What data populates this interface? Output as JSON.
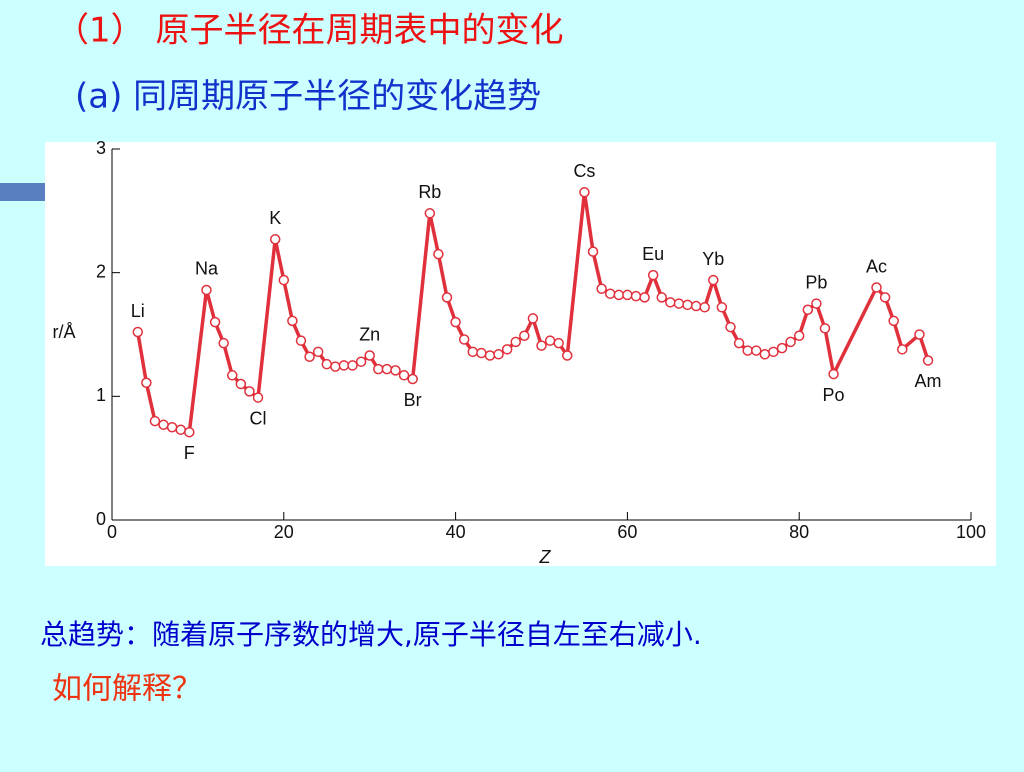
{
  "slide": {
    "title": "（1） 原子半径在周期表中的变化",
    "subtitle": "(a) 同周期原子半径的变化趋势",
    "summary": "总趋势：随着原子序数的增大,原子半径自左至右减小.",
    "question": "如何解释？"
  },
  "chart_data": {
    "type": "line",
    "xlabel": "Z",
    "ylabel": "r/Å",
    "xlim": [
      0,
      100
    ],
    "xticks": [
      0,
      20,
      40,
      60,
      80,
      100
    ],
    "ylim": [
      0,
      3
    ],
    "yticks": [
      0,
      1,
      2,
      3
    ],
    "series": [
      {
        "color": "#e0303c",
        "x": [
          3,
          4,
          5,
          6,
          7,
          8,
          9,
          11,
          12,
          13,
          14,
          15,
          16,
          17,
          19,
          20,
          21,
          22,
          23,
          24,
          25,
          26,
          27,
          28,
          29,
          30,
          31,
          32,
          33,
          34,
          35,
          37,
          38,
          39,
          40,
          41,
          42,
          43,
          44,
          45,
          46,
          47,
          48,
          49,
          50,
          51,
          52,
          53,
          55,
          56,
          57,
          58,
          59,
          60,
          61,
          62,
          63,
          64,
          65,
          66,
          67,
          68,
          69,
          70,
          71,
          72,
          73,
          74,
          75,
          76,
          77,
          78,
          79,
          80,
          81,
          82,
          83,
          84,
          89,
          90,
          91,
          92,
          94,
          95
        ],
        "values": [
          1.52,
          1.11,
          0.8,
          0.77,
          0.75,
          0.73,
          0.71,
          1.86,
          1.6,
          1.43,
          1.17,
          1.1,
          1.04,
          0.99,
          2.27,
          1.94,
          1.61,
          1.45,
          1.32,
          1.36,
          1.26,
          1.24,
          1.25,
          1.25,
          1.28,
          1.33,
          1.22,
          1.22,
          1.21,
          1.17,
          1.14,
          2.48,
          2.15,
          1.8,
          1.6,
          1.46,
          1.36,
          1.35,
          1.33,
          1.34,
          1.38,
          1.44,
          1.49,
          1.63,
          1.41,
          1.45,
          1.43,
          1.33,
          2.65,
          2.17,
          1.87,
          1.83,
          1.82,
          1.82,
          1.81,
          1.8,
          1.98,
          1.8,
          1.76,
          1.75,
          1.74,
          1.73,
          1.72,
          1.94,
          1.72,
          1.56,
          1.43,
          1.37,
          1.37,
          1.34,
          1.36,
          1.39,
          1.44,
          1.49,
          1.7,
          1.75,
          1.55,
          1.18,
          1.88,
          1.8,
          1.61,
          1.38,
          1.5,
          1.29
        ],
        "labels": [
          "Li",
          null,
          null,
          null,
          null,
          null,
          "F",
          "Na",
          null,
          null,
          null,
          null,
          null,
          "Cl",
          "K",
          null,
          null,
          null,
          null,
          null,
          null,
          null,
          null,
          null,
          null,
          "Zn",
          null,
          null,
          null,
          null,
          "Br",
          "Rb",
          null,
          null,
          null,
          null,
          null,
          null,
          null,
          null,
          null,
          null,
          null,
          null,
          null,
          null,
          null,
          null,
          "Cs",
          null,
          null,
          null,
          null,
          null,
          null,
          null,
          "Eu",
          null,
          null,
          null,
          null,
          null,
          null,
          "Yb",
          null,
          null,
          null,
          null,
          null,
          null,
          null,
          null,
          null,
          null,
          null,
          "Pb",
          null,
          "Po",
          "Ac",
          null,
          null,
          null,
          null,
          "Am"
        ]
      }
    ]
  }
}
